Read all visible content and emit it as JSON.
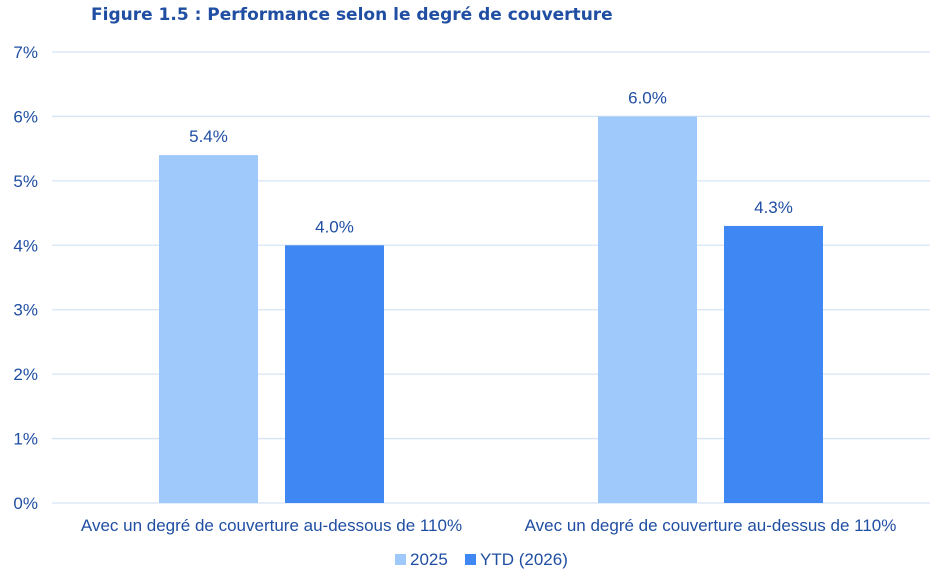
{
  "chart_data": {
    "type": "bar",
    "title": "Figure 1.5 : Performance selon le degré de couverture",
    "categories": [
      "Avec un degré de couverture au-dessous de 110%",
      "Avec un degré de couverture au-dessus de 110%"
    ],
    "series": [
      {
        "name": "2025",
        "values": [
          5.4,
          6.0
        ],
        "labels": [
          "5.4%",
          "6.0%"
        ],
        "color": "#9fc8fb"
      },
      {
        "name": "YTD (2026)",
        "values": [
          4.0,
          4.3
        ],
        "labels": [
          "4.0%",
          "4.3%"
        ],
        "color": "#3f87f3"
      }
    ],
    "ylim": [
      0,
      7
    ],
    "yticks": [
      "0%",
      "1%",
      "2%",
      "3%",
      "4%",
      "5%",
      "6%",
      "7%"
    ],
    "grid": true,
    "legend": "bottom-center",
    "colors": {
      "title": "#1f4ea3",
      "text": "#1f4ea3",
      "grid": "#d6e4f5"
    }
  }
}
